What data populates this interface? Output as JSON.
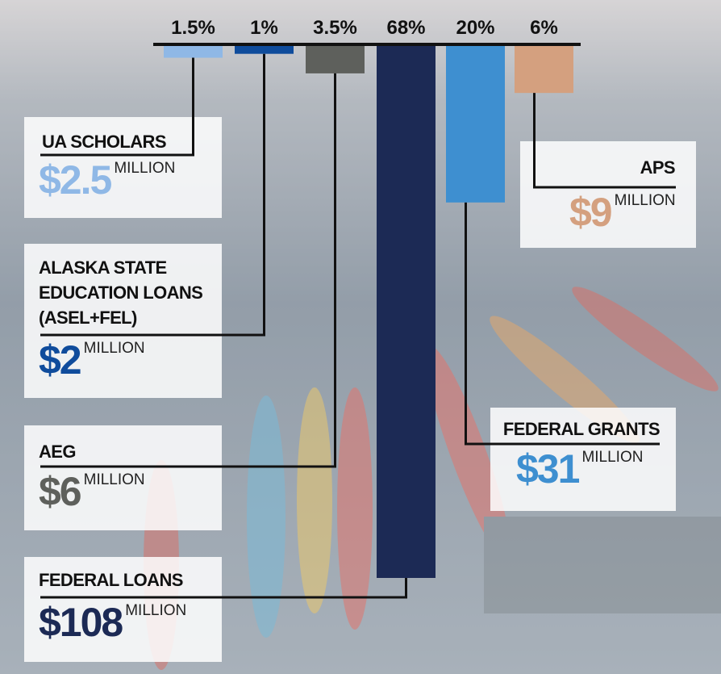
{
  "chart_data": {
    "type": "bar",
    "categories": [
      "UA SCHOLARS",
      "ALASKA STATE EDUCATION LOANS (ASEL+FEL)",
      "AEG",
      "FEDERAL LOANS",
      "FEDERAL GRANTS",
      "APS"
    ],
    "values": [
      1.5,
      1,
      3.5,
      68,
      20,
      6
    ],
    "value_labels": [
      "1.5%",
      "1%",
      "3.5%",
      "68%",
      "20%",
      "6%"
    ],
    "amounts": [
      "$2.5",
      "$2",
      "$6",
      "$108",
      "$31",
      "$9"
    ],
    "amount_unit": "MILLION",
    "colors": [
      "#8fb8e6",
      "#0f4c9c",
      "#5e605c",
      "#1c2a55",
      "#3e8fd0",
      "#d4a07f"
    ],
    "ylim": [
      0,
      68
    ]
  }
}
